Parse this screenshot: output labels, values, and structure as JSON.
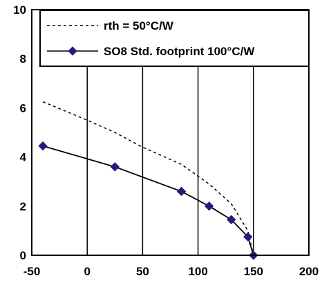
{
  "chart_data": {
    "type": "line",
    "title": "",
    "xlabel": "",
    "ylabel": "",
    "xlim": [
      -50,
      200
    ],
    "ylim": [
      0,
      10
    ],
    "x_ticks": [
      "-50",
      "0",
      "50",
      "100",
      "150",
      "200"
    ],
    "y_ticks": [
      "0",
      "2",
      "4",
      "6",
      "8",
      "10"
    ],
    "grid": "vertical",
    "legend_position": "top-right",
    "series": [
      {
        "name": "rth = 50°C/W",
        "style": "dotted",
        "color": "#000000",
        "x": [
          -40,
          0,
          25,
          50,
          85,
          110,
          130,
          145,
          150
        ],
        "y": [
          6.25,
          5.5,
          5.0,
          4.4,
          3.7,
          2.9,
          2.1,
          1.0,
          0
        ]
      },
      {
        "name": "SO8 Std. footprint 100°C/W",
        "style": "solid",
        "marker": "diamond",
        "color": "#000000",
        "marker_color": "#1f1f7a",
        "x": [
          -40,
          25,
          85,
          110,
          130,
          145,
          150
        ],
        "y": [
          4.45,
          3.6,
          2.6,
          2.0,
          1.45,
          0.75,
          0
        ]
      }
    ]
  }
}
